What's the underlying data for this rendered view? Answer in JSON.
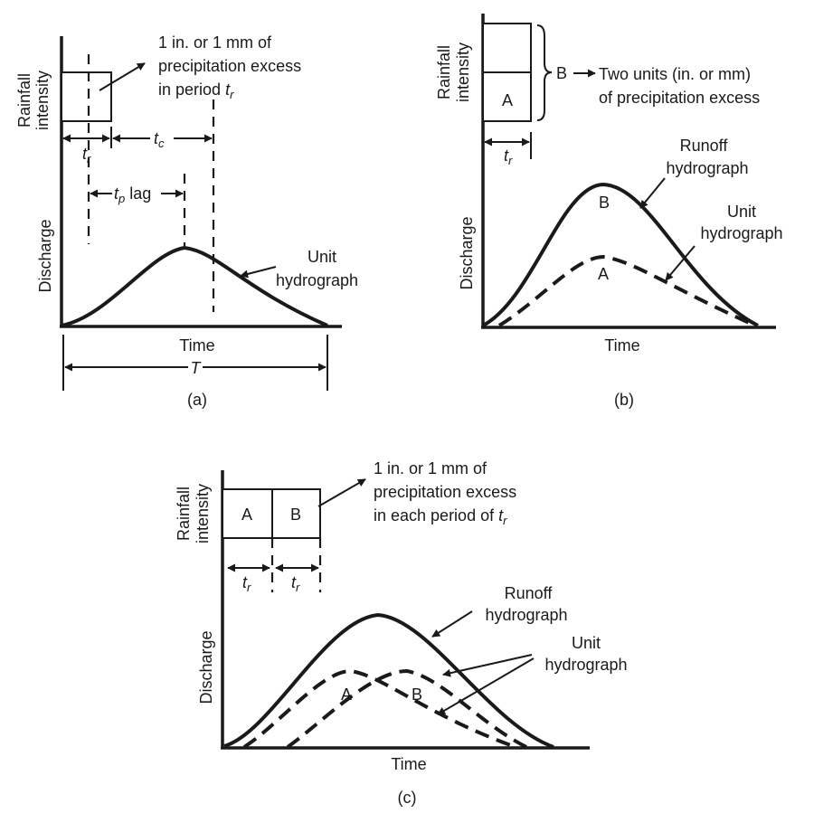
{
  "panel_a": {
    "caption": "(a)",
    "annotation_lines": [
      "1 in. or 1 mm of",
      "precipitation excess",
      "in period "
    ],
    "annotation_sub": "t",
    "annotation_sub_r": "r",
    "y_label_top": [
      "Rainfall",
      "intensity"
    ],
    "y_label_bottom": "Discharge",
    "x_label": "Time",
    "tr_t": "t",
    "tr_sub": "r",
    "tc_t": "t",
    "tc_sub": "c",
    "tp_t": "t",
    "tp_sub": "p",
    "tp_suffix": " lag",
    "curve_label": [
      "Unit",
      "hydrograph"
    ],
    "base_label": "T"
  },
  "panel_b": {
    "caption": "(b)",
    "y_label_top": [
      "Rainfall",
      "intensity"
    ],
    "y_label_bottom": "Discharge",
    "x_label": "Time",
    "box_a": "A",
    "brace_label": "B",
    "brace_text": [
      "Two units (in. or mm)",
      "of precipitation excess"
    ],
    "tr_t": "t",
    "tr_sub": "r",
    "runoff_label": [
      "Runoff",
      "hydrograph"
    ],
    "unit_label": [
      "Unit",
      "hydrograph"
    ],
    "peak_b": "B",
    "peak_a": "A"
  },
  "panel_c": {
    "caption": "(c)",
    "y_label_top": [
      "Rainfall",
      "intensity"
    ],
    "y_label_bottom": "Discharge",
    "x_label": "Time",
    "box_a": "A",
    "box_b": "B",
    "annotation_lines": [
      "1 in. or 1 mm of",
      "precipitation excess",
      "in each period of "
    ],
    "annotation_sub": "t",
    "annotation_sub_r": "r",
    "tr_t": "t",
    "tr_sub": "r",
    "runoff_label": [
      "Runoff",
      "hydrograph"
    ],
    "unit_label": [
      "Unit",
      "hydrograph"
    ],
    "curve_a": "A",
    "curve_b": "B"
  }
}
